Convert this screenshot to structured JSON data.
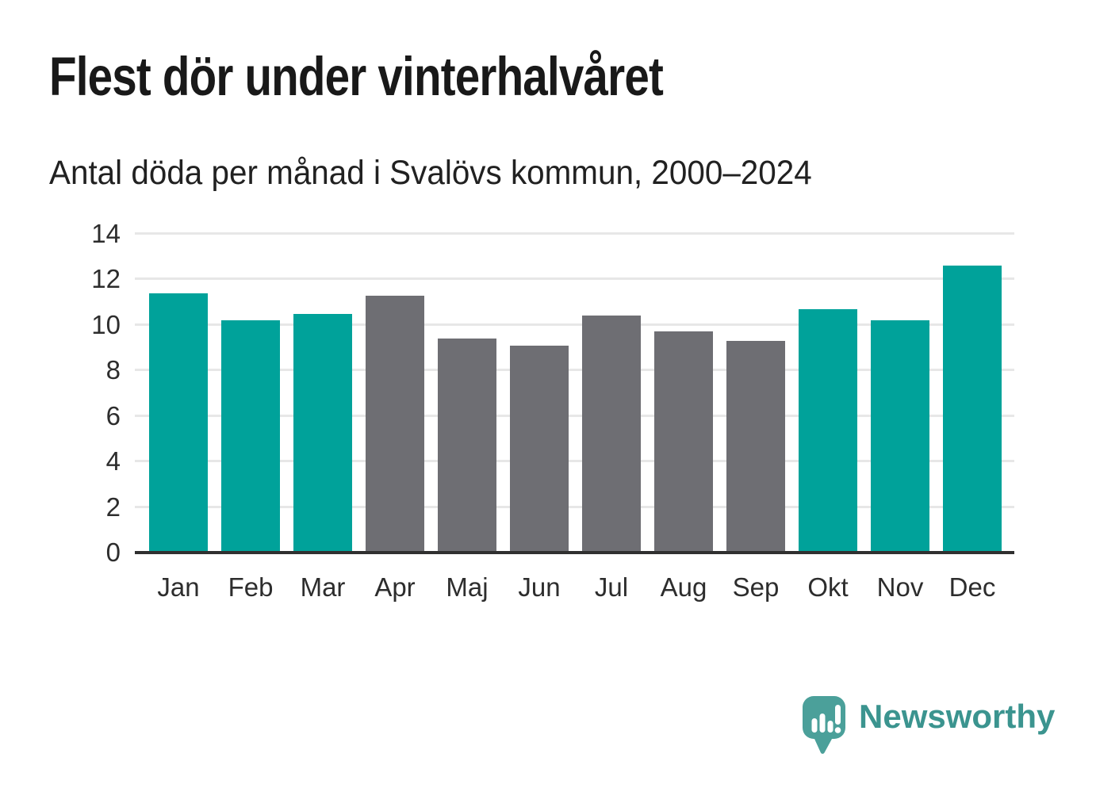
{
  "page": {
    "background": "#ffffff"
  },
  "header": {
    "title": "Flest dör under vinterhalvåret",
    "subtitle": "Antal döda per månad i Svalövs kommun, 2000–2024"
  },
  "chart_data": {
    "type": "bar",
    "title": "Flest dör under vinterhalvåret",
    "subtitle": "Antal döda per månad i Svalövs kommun, 2000–2024",
    "categories": [
      "Jan",
      "Feb",
      "Mar",
      "Apr",
      "Maj",
      "Jun",
      "Jul",
      "Aug",
      "Sep",
      "Okt",
      "Nov",
      "Dec"
    ],
    "values": [
      11.4,
      10.2,
      10.5,
      11.3,
      9.4,
      9.1,
      10.4,
      9.7,
      9.3,
      10.7,
      10.2,
      12.6
    ],
    "bar_color_keys": [
      "teal",
      "teal",
      "teal",
      "gray",
      "gray",
      "gray",
      "gray",
      "gray",
      "gray",
      "teal",
      "teal",
      "teal"
    ],
    "palette": {
      "teal": "#00a29a",
      "gray": "#6e6e73"
    },
    "xlabel": "",
    "ylabel": "",
    "ylim": [
      0,
      14
    ],
    "y_ticks": [
      0,
      2,
      4,
      6,
      8,
      10,
      12,
      14
    ],
    "grid": "horizontal-light",
    "grid_color": "#e7e7e7",
    "axis_line_color": "#303030",
    "tick_label_color": "#2d2d2d",
    "legend": "none"
  },
  "footer": {
    "brand": "Newsworthy",
    "brand_color": "#3b948f",
    "icon_name": "newsworthy-logo-icon",
    "icon_color": "#4ba09a",
    "icon_glyph_color": "#ffffff"
  }
}
